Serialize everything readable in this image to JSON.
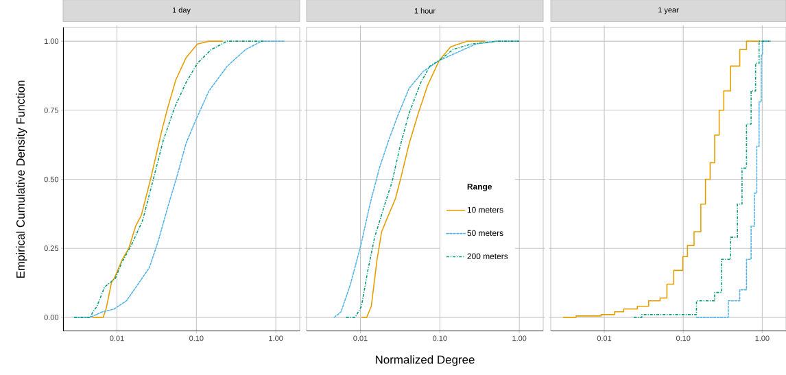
{
  "chart_data": [
    {
      "type": "line",
      "title": "1 day",
      "ylabel": "Empirical Cumulative Density Function",
      "log": "x",
      "grid": true,
      "legend": false,
      "xlim": [
        0.0021,
        2.0
      ],
      "ylim": [
        -0.05,
        1.05
      ],
      "xticks": [
        {
          "value": 0.01,
          "label": "0.01"
        },
        {
          "value": 0.1,
          "label": "0.10"
        },
        {
          "value": 1,
          "label": "1.00"
        }
      ],
      "yticks": [
        {
          "value": 0,
          "label": "0.00"
        },
        {
          "value": 0.25,
          "label": "0.25"
        },
        {
          "value": 0.5,
          "label": "0.50"
        },
        {
          "value": 0.75,
          "label": "0.75"
        },
        {
          "value": 1,
          "label": "1.00"
        }
      ],
      "series": [
        {
          "color": "#e69f00",
          "line_style": "solid",
          "x": [
            0.0049,
            0.0067,
            0.0073,
            0.0086,
            0.0092,
            0.0117,
            0.0141,
            0.0172,
            0.0203,
            0.0265,
            0.0313,
            0.037,
            0.0437,
            0.0551,
            0.0741,
            0.103,
            0.144,
            0.214
          ],
          "values": [
            0,
            0,
            0.03,
            0.13,
            0.14,
            0.21,
            0.25,
            0.33,
            0.37,
            0.5,
            0.59,
            0.68,
            0.76,
            0.86,
            0.94,
            0.99,
            1.0,
            1.0
          ]
        },
        {
          "color": "#56b4e9",
          "line_style": "dashed",
          "x": [
            0.0029,
            0.0046,
            0.0066,
            0.0092,
            0.0132,
            0.0184,
            0.0256,
            0.0334,
            0.0437,
            0.0569,
            0.0741,
            0.0968,
            0.144,
            0.245,
            0.417,
            0.662,
            1.29
          ],
          "values": [
            0,
            0,
            0.02,
            0.03,
            0.06,
            0.12,
            0.18,
            0.28,
            0.4,
            0.51,
            0.63,
            0.71,
            0.82,
            0.91,
            0.97,
            1.0,
            1.0
          ]
        },
        {
          "color": "#009e73",
          "line_style": "dashdot",
          "x": [
            0.0029,
            0.0046,
            0.005,
            0.0056,
            0.007,
            0.0095,
            0.0116,
            0.0151,
            0.021,
            0.0293,
            0.0382,
            0.0532,
            0.0741,
            0.103,
            0.154,
            0.245,
            0.39,
            0.708
          ],
          "values": [
            0,
            0,
            0.02,
            0.04,
            0.11,
            0.14,
            0.2,
            0.26,
            0.35,
            0.51,
            0.64,
            0.76,
            0.85,
            0.92,
            0.97,
            1.0,
            1.0,
            1.0
          ]
        }
      ]
    },
    {
      "type": "line",
      "title": "1 hour",
      "xlabel": "Normalized Degree",
      "log": "x",
      "grid": true,
      "legend": "center right",
      "legend_title": "Range",
      "tick_labels": "x",
      "xlim": [
        0.0021,
        2.0
      ],
      "ylim": [
        -0.05,
        1.05
      ],
      "xticks": [
        {
          "value": 0.01,
          "label": "0.01"
        },
        {
          "value": 0.1,
          "label": "0.10"
        },
        {
          "value": 1,
          "label": "1.00"
        }
      ],
      "yticks": [
        {
          "value": 0,
          "label": null
        },
        {
          "value": 0.25,
          "label": null
        },
        {
          "value": 0.5,
          "label": null
        },
        {
          "value": 0.75,
          "label": null
        },
        {
          "value": 1,
          "label": null
        }
      ],
      "series": [
        {
          "name": "10 meters",
          "color": "#e69f00",
          "line_style": "solid",
          "x": [
            0.0103,
            0.012,
            0.0137,
            0.0162,
            0.0185,
            0.0218,
            0.0276,
            0.0326,
            0.0411,
            0.0537,
            0.0701,
            0.0979,
            0.137,
            0.218,
            0.372
          ],
          "values": [
            0,
            0,
            0.04,
            0.21,
            0.31,
            0.36,
            0.43,
            0.51,
            0.63,
            0.74,
            0.84,
            0.93,
            0.98,
            1.0,
            1.0
          ]
        },
        {
          "name": "50 meters",
          "color": "#56b4e9",
          "line_style": "dashed",
          "x": [
            0.0047,
            0.0057,
            0.0075,
            0.0101,
            0.0132,
            0.0173,
            0.0226,
            0.0295,
            0.0411,
            0.0614,
            0.0979,
            0.167,
            0.285,
            0.52,
            0.955
          ],
          "values": [
            0,
            0.02,
            0.12,
            0.26,
            0.41,
            0.54,
            0.64,
            0.73,
            0.83,
            0.89,
            0.93,
            0.96,
            0.99,
            1.0,
            1.0
          ]
        },
        {
          "name": "200 meters",
          "color": "#009e73",
          "line_style": "dashdot",
          "x": [
            0.0066,
            0.0086,
            0.0103,
            0.0124,
            0.0151,
            0.0198,
            0.025,
            0.0316,
            0.0411,
            0.0574,
            0.075,
            0.0979,
            0.146,
            0.249,
            0.52,
            1.0
          ],
          "values": [
            0,
            0,
            0.04,
            0.17,
            0.29,
            0.4,
            0.49,
            0.62,
            0.74,
            0.85,
            0.91,
            0.93,
            0.97,
            0.99,
            1.0,
            1.0
          ]
        }
      ]
    },
    {
      "type": "step",
      "title": "1 year",
      "log": "x",
      "grid": true,
      "legend": false,
      "tick_labels": "x",
      "xlim": [
        0.0021,
        2.0
      ],
      "ylim": [
        -0.05,
        1.05
      ],
      "xticks": [
        {
          "value": 0.01,
          "label": "0.01"
        },
        {
          "value": 0.1,
          "label": "0.10"
        },
        {
          "value": 1,
          "label": "1.00"
        }
      ],
      "yticks": [
        {
          "value": 0,
          "label": null
        },
        {
          "value": 0.25,
          "label": null
        },
        {
          "value": 0.5,
          "label": null
        },
        {
          "value": 0.75,
          "label": null
        },
        {
          "value": 1,
          "label": null
        }
      ],
      "series": [
        {
          "color": "#e69f00",
          "line_style": "solid",
          "x": [
            0.003,
            0.0044,
            0.0091,
            0.0135,
            0.0176,
            0.0262,
            0.0365,
            0.0508,
            0.0621,
            0.0757,
            0.0986,
            0.113,
            0.137,
            0.167,
            0.191,
            0.219,
            0.25,
            0.285,
            0.326,
            0.397,
            0.519,
            0.632,
            0.942
          ],
          "values": [
            0,
            0.005,
            0.01,
            0.02,
            0.03,
            0.04,
            0.06,
            0.07,
            0.12,
            0.17,
            0.22,
            0.26,
            0.31,
            0.41,
            0.5,
            0.56,
            0.66,
            0.75,
            0.82,
            0.91,
            0.97,
            1.0,
            1.0
          ]
        },
        {
          "color": "#56b4e9",
          "line_style": "dashed",
          "x": [
            0.147,
            0.285,
            0.372,
            0.519,
            0.632,
            0.723,
            0.798,
            0.853,
            0.912,
            0.973,
            1.007,
            1.27
          ],
          "values": [
            0,
            0,
            0.06,
            0.1,
            0.21,
            0.33,
            0.45,
            0.62,
            0.78,
            0.95,
            1.0,
            1.0
          ]
        },
        {
          "color": "#009e73",
          "line_style": "dashdot",
          "x": [
            0.0237,
            0.0299,
            0.0986,
            0.147,
            0.25,
            0.305,
            0.397,
            0.485,
            0.555,
            0.632,
            0.723,
            0.824,
            0.912,
            1.23
          ],
          "values": [
            0,
            0.01,
            0.01,
            0.06,
            0.09,
            0.21,
            0.29,
            0.41,
            0.54,
            0.7,
            0.82,
            0.92,
            1.0,
            1.0
          ]
        }
      ]
    }
  ]
}
